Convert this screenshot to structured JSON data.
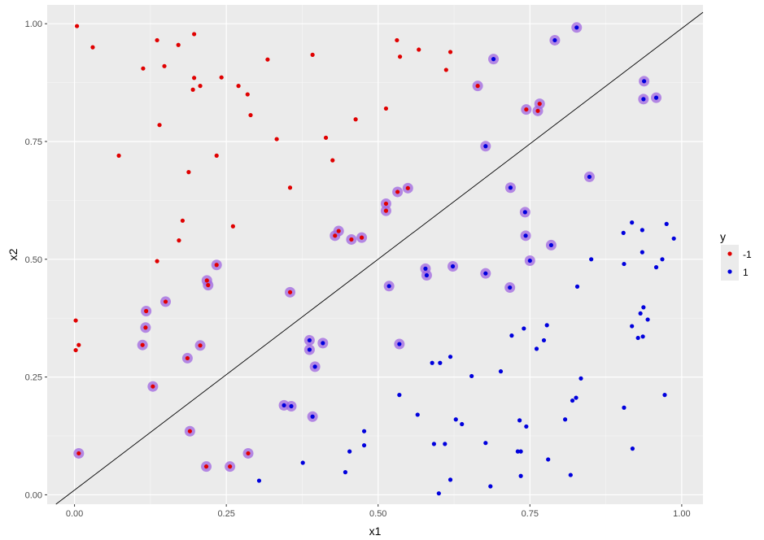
{
  "chart_data": {
    "type": "scatter",
    "xlabel": "x1",
    "ylabel": "x2",
    "xlim": [
      -0.045,
      1.035
    ],
    "ylim": [
      -0.02,
      1.04
    ],
    "x_ticks": [
      0.0,
      0.25,
      0.5,
      0.75,
      1.0
    ],
    "x_tick_labels": [
      "0.00",
      "0.25",
      "0.50",
      "0.75",
      "1.00"
    ],
    "y_ticks": [
      0.0,
      0.25,
      0.5,
      0.75,
      1.0
    ],
    "y_tick_labels": [
      "0.00",
      "0.25",
      "0.50",
      "0.75",
      "1.00"
    ],
    "grid": true,
    "legend": {
      "title": "y",
      "placement": "right",
      "entries": [
        {
          "label": "-1",
          "color": "#e00000"
        },
        {
          "label": "1",
          "color": "#0000dd"
        }
      ]
    },
    "decision_line": {
      "intercept": 0.01,
      "slope": 0.98
    },
    "highlight_color": "#a066e0",
    "series": [
      {
        "name": "-1",
        "color": "#e00000",
        "points": [
          [
            0.004,
            0.995
          ],
          [
            0.03,
            0.95
          ],
          [
            0.136,
            0.965
          ],
          [
            0.171,
            0.955
          ],
          [
            0.197,
            0.978
          ],
          [
            0.113,
            0.905
          ],
          [
            0.148,
            0.91
          ],
          [
            0.197,
            0.885
          ],
          [
            0.207,
            0.868
          ],
          [
            0.195,
            0.86
          ],
          [
            0.242,
            0.886
          ],
          [
            0.27,
            0.868
          ],
          [
            0.285,
            0.85
          ],
          [
            0.29,
            0.806
          ],
          [
            0.318,
            0.924
          ],
          [
            0.392,
            0.934
          ],
          [
            0.531,
            0.965
          ],
          [
            0.536,
            0.93
          ],
          [
            0.567,
            0.945
          ],
          [
            0.619,
            0.94
          ],
          [
            0.612,
            0.902
          ],
          [
            0.14,
            0.785
          ],
          [
            0.073,
            0.72
          ],
          [
            0.234,
            0.72
          ],
          [
            0.188,
            0.685
          ],
          [
            0.333,
            0.755
          ],
          [
            0.414,
            0.758
          ],
          [
            0.425,
            0.71
          ],
          [
            0.463,
            0.797
          ],
          [
            0.513,
            0.82
          ],
          [
            0.355,
            0.652
          ],
          [
            0.178,
            0.582
          ],
          [
            0.261,
            0.57
          ],
          [
            0.172,
            0.54
          ],
          [
            0.136,
            0.496
          ],
          [
            0.002,
            0.37
          ],
          [
            0.007,
            0.318
          ],
          [
            0.002,
            0.307
          ],
          [
            0.007,
            0.088
          ],
          [
            0.129,
            0.23
          ],
          [
            0.118,
            0.39
          ],
          [
            0.117,
            0.355
          ],
          [
            0.112,
            0.318
          ],
          [
            0.15,
            0.41
          ],
          [
            0.186,
            0.29
          ],
          [
            0.207,
            0.317
          ],
          [
            0.218,
            0.455
          ],
          [
            0.22,
            0.445
          ],
          [
            0.234,
            0.488
          ],
          [
            0.19,
            0.135
          ],
          [
            0.217,
            0.06
          ],
          [
            0.256,
            0.06
          ],
          [
            0.286,
            0.088
          ],
          [
            0.355,
            0.43
          ],
          [
            0.429,
            0.55
          ],
          [
            0.435,
            0.56
          ],
          [
            0.456,
            0.542
          ],
          [
            0.473,
            0.546
          ],
          [
            0.513,
            0.618
          ],
          [
            0.513,
            0.603
          ],
          [
            0.532,
            0.643
          ],
          [
            0.549,
            0.651
          ],
          [
            0.664,
            0.868
          ],
          [
            0.744,
            0.818
          ],
          [
            0.763,
            0.815
          ],
          [
            0.766,
            0.83
          ]
        ]
      },
      {
        "name": "1",
        "color": "#0000dd",
        "points": [
          [
            0.827,
            0.992
          ],
          [
            0.791,
            0.965
          ],
          [
            0.69,
            0.925
          ],
          [
            0.677,
            0.74
          ],
          [
            0.938,
            0.878
          ],
          [
            0.937,
            0.84
          ],
          [
            0.958,
            0.843
          ],
          [
            0.848,
            0.675
          ],
          [
            0.718,
            0.652
          ],
          [
            0.742,
            0.6
          ],
          [
            0.743,
            0.55
          ],
          [
            0.75,
            0.497
          ],
          [
            0.785,
            0.53
          ],
          [
            0.623,
            0.485
          ],
          [
            0.677,
            0.47
          ],
          [
            0.717,
            0.44
          ],
          [
            0.578,
            0.48
          ],
          [
            0.58,
            0.466
          ],
          [
            0.518,
            0.443
          ],
          [
            0.535,
            0.32
          ],
          [
            0.387,
            0.328
          ],
          [
            0.387,
            0.308
          ],
          [
            0.409,
            0.322
          ],
          [
            0.396,
            0.272
          ],
          [
            0.345,
            0.19
          ],
          [
            0.357,
            0.188
          ],
          [
            0.392,
            0.166
          ],
          [
            0.904,
            0.556
          ],
          [
            0.918,
            0.578
          ],
          [
            0.935,
            0.562
          ],
          [
            0.975,
            0.575
          ],
          [
            0.987,
            0.544
          ],
          [
            0.935,
            0.515
          ],
          [
            0.851,
            0.5
          ],
          [
            0.905,
            0.49
          ],
          [
            0.958,
            0.483
          ],
          [
            0.968,
            0.5
          ],
          [
            0.828,
            0.442
          ],
          [
            0.937,
            0.398
          ],
          [
            0.932,
            0.385
          ],
          [
            0.944,
            0.372
          ],
          [
            0.918,
            0.358
          ],
          [
            0.928,
            0.333
          ],
          [
            0.936,
            0.336
          ],
          [
            0.778,
            0.36
          ],
          [
            0.74,
            0.353
          ],
          [
            0.72,
            0.338
          ],
          [
            0.773,
            0.328
          ],
          [
            0.761,
            0.31
          ],
          [
            0.702,
            0.262
          ],
          [
            0.619,
            0.293
          ],
          [
            0.589,
            0.28
          ],
          [
            0.602,
            0.28
          ],
          [
            0.654,
            0.252
          ],
          [
            0.834,
            0.247
          ],
          [
            0.535,
            0.212
          ],
          [
            0.826,
            0.206
          ],
          [
            0.82,
            0.2
          ],
          [
            0.972,
            0.212
          ],
          [
            0.565,
            0.17
          ],
          [
            0.628,
            0.16
          ],
          [
            0.638,
            0.15
          ],
          [
            0.733,
            0.158
          ],
          [
            0.744,
            0.145
          ],
          [
            0.808,
            0.16
          ],
          [
            0.905,
            0.185
          ],
          [
            0.477,
            0.135
          ],
          [
            0.477,
            0.105
          ],
          [
            0.453,
            0.092
          ],
          [
            0.592,
            0.108
          ],
          [
            0.61,
            0.108
          ],
          [
            0.677,
            0.11
          ],
          [
            0.73,
            0.092
          ],
          [
            0.735,
            0.092
          ],
          [
            0.919,
            0.098
          ],
          [
            0.78,
            0.075
          ],
          [
            0.376,
            0.068
          ],
          [
            0.446,
            0.048
          ],
          [
            0.304,
            0.03
          ],
          [
            0.619,
            0.032
          ],
          [
            0.735,
            0.04
          ],
          [
            0.817,
            0.042
          ],
          [
            0.685,
            0.018
          ],
          [
            0.6,
            0.003
          ]
        ]
      }
    ],
    "highlighted_points": [
      [
        0.827,
        0.992
      ],
      [
        0.791,
        0.965
      ],
      [
        0.69,
        0.925
      ],
      [
        0.664,
        0.868
      ],
      [
        0.677,
        0.74
      ],
      [
        0.744,
        0.818
      ],
      [
        0.763,
        0.815
      ],
      [
        0.766,
        0.83
      ],
      [
        0.938,
        0.878
      ],
      [
        0.937,
        0.84
      ],
      [
        0.958,
        0.843
      ],
      [
        0.848,
        0.675
      ],
      [
        0.718,
        0.652
      ],
      [
        0.742,
        0.6
      ],
      [
        0.743,
        0.55
      ],
      [
        0.75,
        0.497
      ],
      [
        0.785,
        0.53
      ],
      [
        0.623,
        0.485
      ],
      [
        0.677,
        0.47
      ],
      [
        0.717,
        0.44
      ],
      [
        0.578,
        0.48
      ],
      [
        0.58,
        0.466
      ],
      [
        0.518,
        0.443
      ],
      [
        0.535,
        0.32
      ],
      [
        0.513,
        0.618
      ],
      [
        0.513,
        0.603
      ],
      [
        0.532,
        0.643
      ],
      [
        0.549,
        0.651
      ],
      [
        0.429,
        0.55
      ],
      [
        0.435,
        0.56
      ],
      [
        0.456,
        0.542
      ],
      [
        0.473,
        0.546
      ],
      [
        0.355,
        0.43
      ],
      [
        0.387,
        0.328
      ],
      [
        0.387,
        0.308
      ],
      [
        0.409,
        0.322
      ],
      [
        0.396,
        0.272
      ],
      [
        0.345,
        0.19
      ],
      [
        0.357,
        0.188
      ],
      [
        0.392,
        0.166
      ],
      [
        0.007,
        0.088
      ],
      [
        0.129,
        0.23
      ],
      [
        0.118,
        0.39
      ],
      [
        0.117,
        0.355
      ],
      [
        0.112,
        0.318
      ],
      [
        0.15,
        0.41
      ],
      [
        0.186,
        0.29
      ],
      [
        0.207,
        0.317
      ],
      [
        0.218,
        0.455
      ],
      [
        0.22,
        0.445
      ],
      [
        0.234,
        0.488
      ],
      [
        0.19,
        0.135
      ],
      [
        0.217,
        0.06
      ],
      [
        0.256,
        0.06
      ],
      [
        0.286,
        0.088
      ]
    ]
  }
}
